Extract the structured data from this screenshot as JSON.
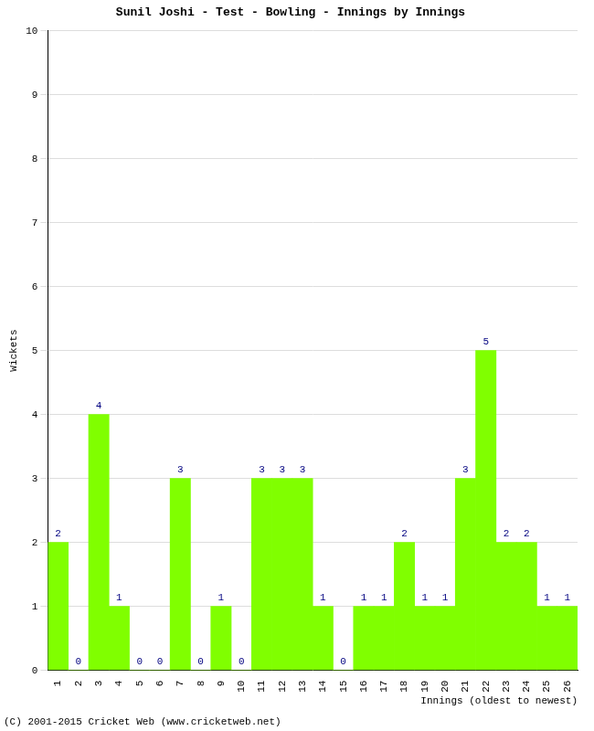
{
  "chart_data": {
    "type": "bar",
    "title": "Sunil Joshi - Test - Bowling - Innings by Innings",
    "x_label": "Innings (oldest to newest)",
    "y_label": "Wickets",
    "annotations": [
      "(C) 2001-2015 Cricket Web (www.cricketweb.net)"
    ],
    "categories": [
      "1",
      "2",
      "3",
      "4",
      "5",
      "6",
      "7",
      "8",
      "9",
      "10",
      "11",
      "12",
      "13",
      "14",
      "15",
      "16",
      "17",
      "18",
      "19",
      "20",
      "21",
      "22",
      "23",
      "24",
      "25",
      "26"
    ],
    "values": [
      2,
      0,
      4,
      1,
      0,
      0,
      3,
      0,
      1,
      0,
      3,
      3,
      3,
      1,
      0,
      1,
      1,
      2,
      1,
      1,
      3,
      5,
      2,
      2,
      1,
      1
    ],
    "color": "#80ff00",
    "ylim": [
      0,
      10
    ],
    "yticks": [
      0,
      1,
      2,
      3,
      4,
      5,
      6,
      7,
      8,
      9,
      10
    ],
    "grid": true,
    "data_labels": true
  }
}
